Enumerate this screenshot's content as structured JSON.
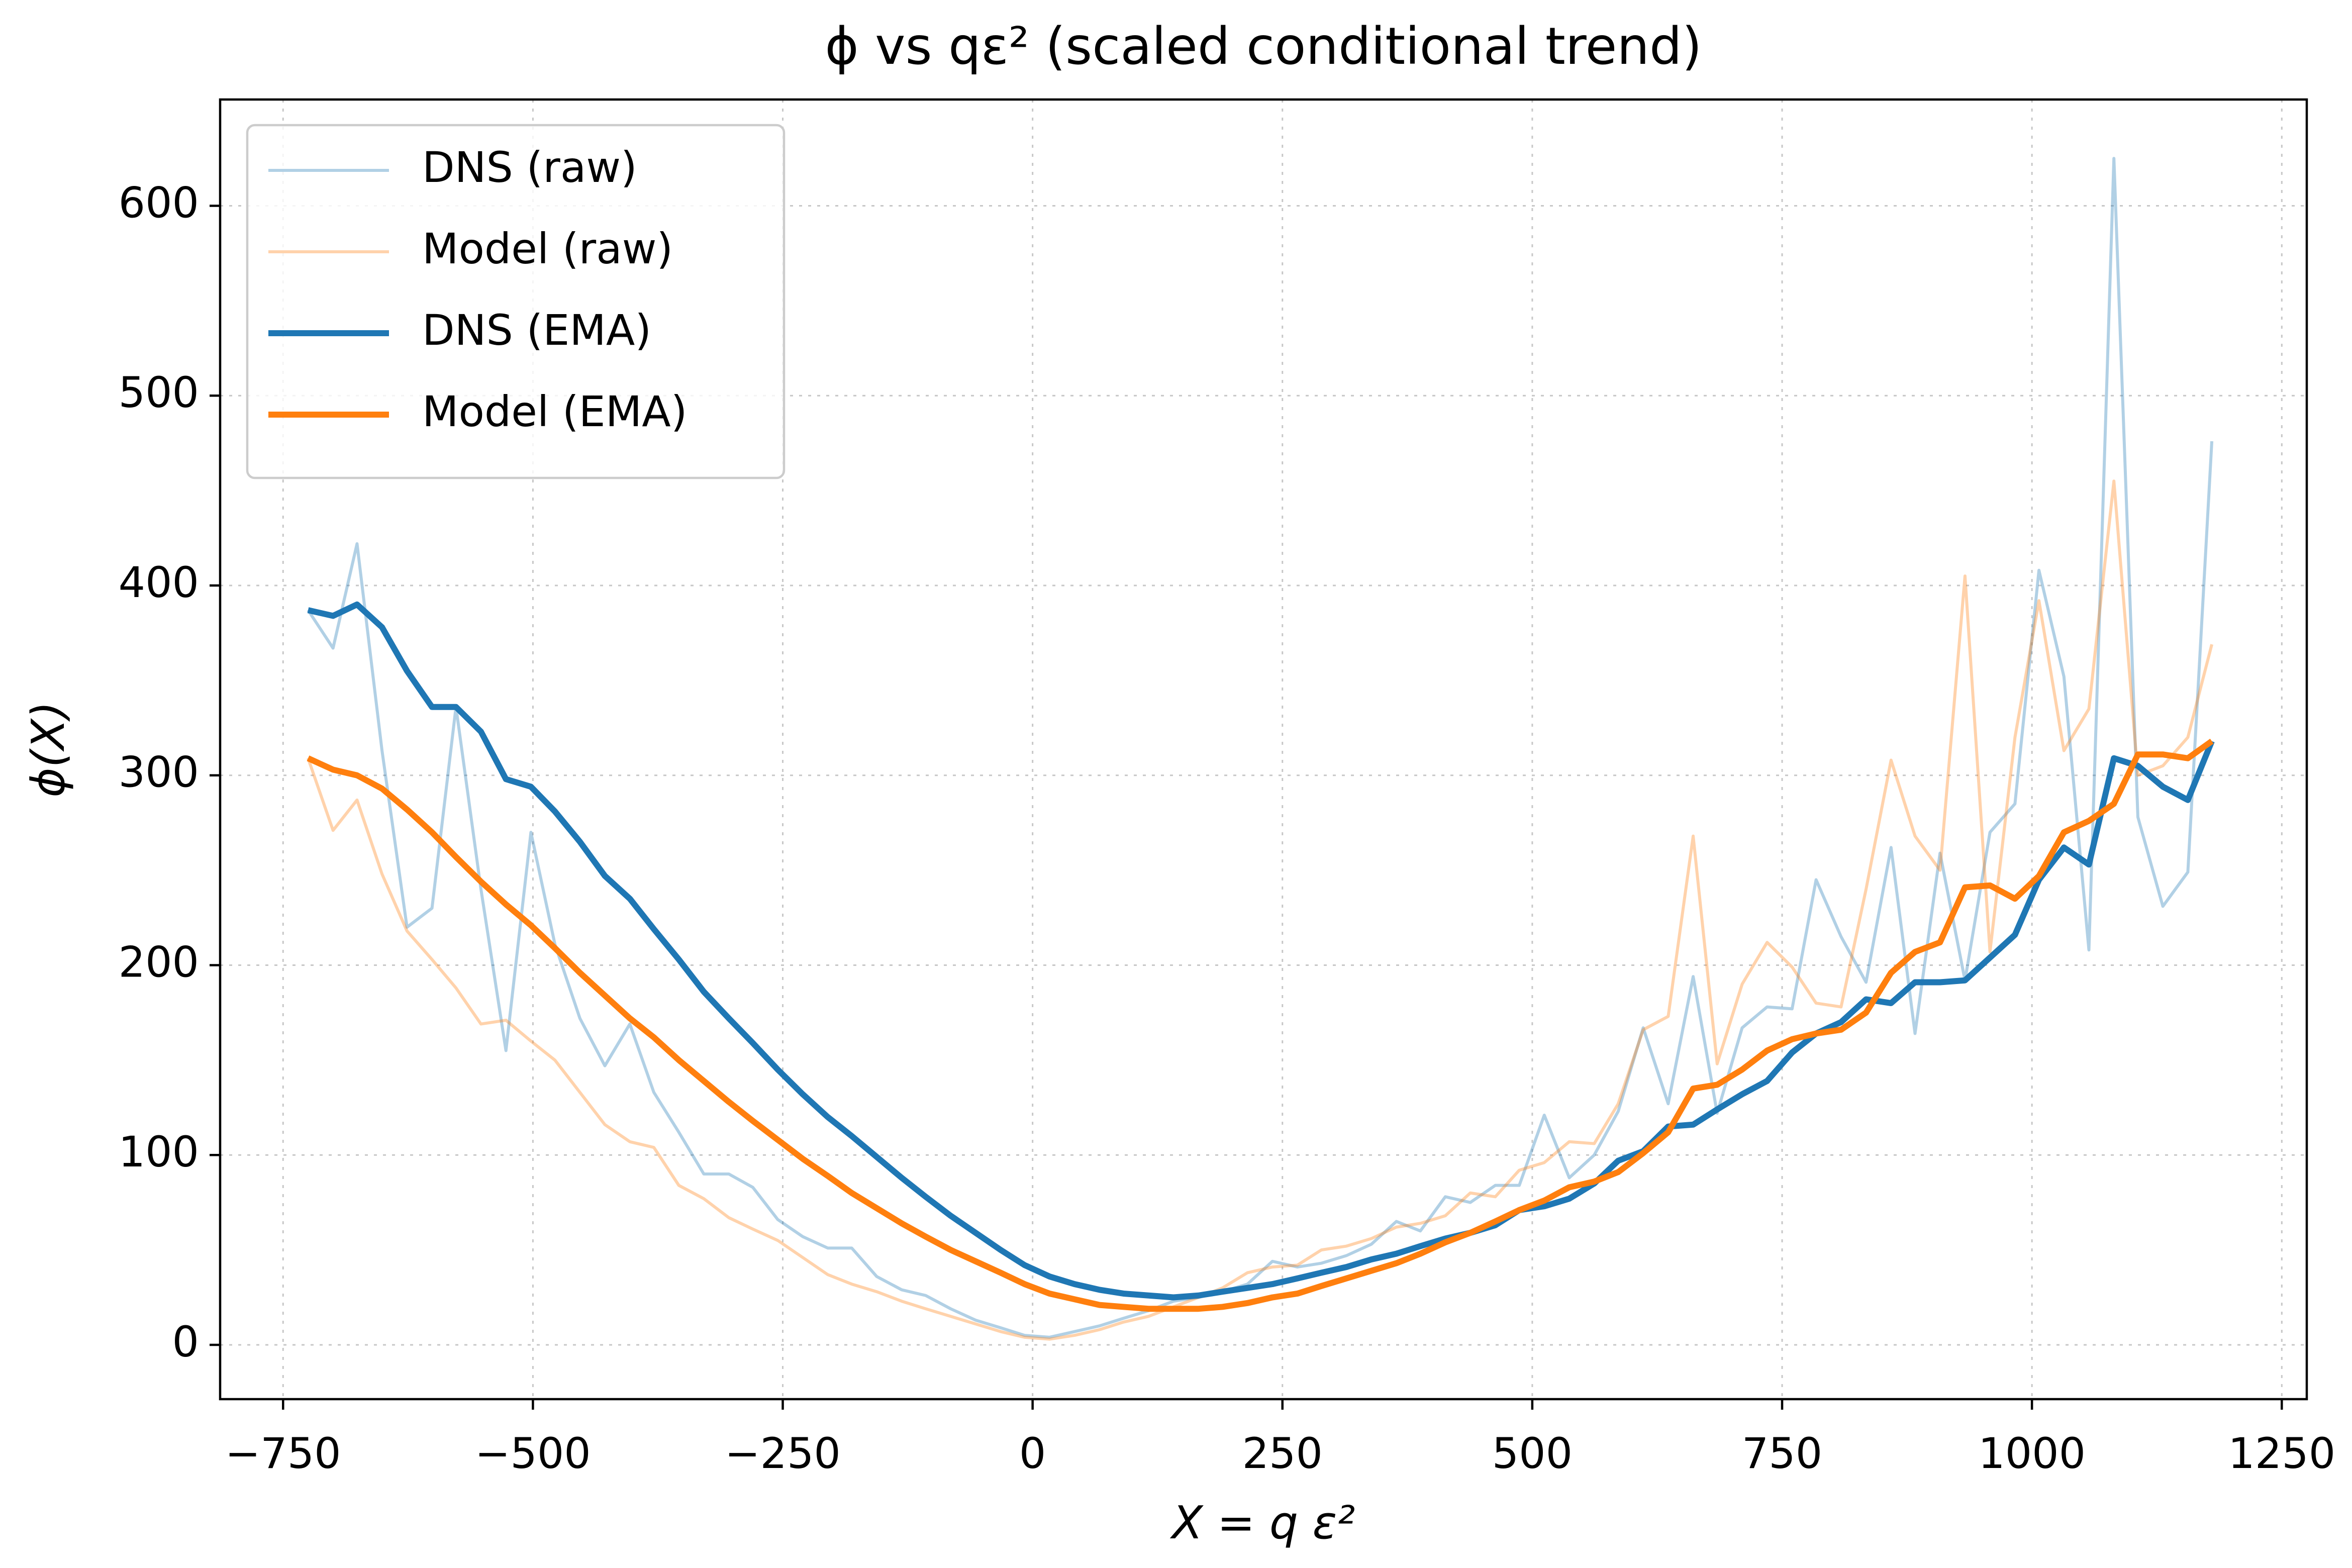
{
  "chart_data": {
    "type": "line",
    "title": "ϕ vs qε² (scaled conditional trend)",
    "xlabel": "X = q ε²",
    "ylabel": "ϕ(X)",
    "x": [
      -725,
      -700,
      -676,
      -651,
      -626,
      -601,
      -577,
      -552,
      -527,
      -502,
      -478,
      -453,
      -428,
      -403,
      -379,
      -354,
      -329,
      -304,
      -280,
      -255,
      -230,
      -205,
      -181,
      -156,
      -131,
      -107,
      -82,
      -57,
      -32,
      -8,
      17,
      42,
      67,
      91,
      116,
      141,
      166,
      190,
      215,
      240,
      265,
      289,
      314,
      339,
      364,
      388,
      413,
      438,
      463,
      487,
      512,
      537,
      562,
      586,
      611,
      636,
      661,
      685,
      710,
      735,
      760,
      784,
      809,
      834,
      859,
      883,
      908,
      933,
      958,
      983,
      1007,
      1032,
      1057,
      1082,
      1106,
      1131,
      1156,
      1180
    ],
    "series": [
      {
        "name": "DNS (raw)",
        "color": "#1f77b4",
        "opacity": 0.35,
        "values": [
          387,
          367,
          422,
          313,
          220,
          230,
          336,
          240,
          155,
          270,
          211,
          172,
          147,
          169,
          133,
          112,
          90,
          90,
          83,
          66,
          57,
          51,
          51,
          36,
          29,
          26,
          19,
          13,
          9,
          5,
          4,
          7,
          10,
          14,
          18,
          23,
          25,
          28,
          32,
          44,
          41,
          43,
          47,
          53,
          65,
          60,
          78,
          75,
          84,
          84,
          121,
          88,
          100,
          123,
          167,
          127,
          194,
          122,
          167,
          178,
          177,
          245,
          215,
          191,
          262,
          164,
          259,
          192,
          270,
          285,
          408,
          352,
          208,
          625,
          278,
          231,
          249,
          476
        ]
      },
      {
        "name": "Model (raw)",
        "color": "#ff7f0e",
        "opacity": 0.35,
        "values": [
          309,
          271,
          287,
          248,
          218,
          203,
          188,
          169,
          171,
          160,
          150,
          133,
          116,
          107,
          104,
          84,
          77,
          67,
          61,
          55,
          46,
          37,
          32,
          28,
          23,
          19,
          15,
          11,
          7,
          4,
          3,
          5,
          8,
          12,
          15,
          20,
          25,
          30,
          38,
          41,
          42,
          50,
          52,
          56,
          62,
          64,
          68,
          80,
          78,
          92,
          96,
          107,
          106,
          127,
          166,
          173,
          268,
          148,
          190,
          212,
          199,
          180,
          178,
          240,
          308,
          268,
          250,
          405,
          207,
          320,
          392,
          313,
          335,
          455,
          300,
          305,
          320,
          369
        ]
      },
      {
        "name": "DNS (EMA)",
        "color": "#1f77b4",
        "opacity": 1,
        "values": [
          387,
          384,
          390,
          378,
          355,
          336,
          336,
          323,
          298,
          294,
          281,
          265,
          247,
          235,
          219,
          203,
          186,
          172,
          159,
          145,
          132,
          120,
          110,
          99,
          88,
          78,
          68,
          59,
          50,
          42,
          36,
          32,
          29,
          27,
          26,
          25,
          26,
          28,
          30,
          32,
          35,
          38,
          41,
          45,
          48,
          52,
          56,
          59,
          63,
          71,
          73,
          77,
          85,
          97,
          102,
          115,
          116,
          124,
          132,
          139,
          154,
          164,
          170,
          182,
          180,
          191,
          191,
          192,
          204,
          216,
          245,
          262,
          253,
          309,
          305,
          294,
          287,
          318
        ]
      },
      {
        "name": "Model (EMA)",
        "color": "#ff7f0e",
        "opacity": 1,
        "values": [
          309,
          303,
          300,
          293,
          282,
          270,
          257,
          244,
          232,
          221,
          209,
          196,
          184,
          172,
          162,
          150,
          139,
          128,
          118,
          108,
          98,
          89,
          80,
          72,
          64,
          57,
          50,
          44,
          38,
          32,
          27,
          24,
          21,
          20,
          19,
          19,
          19,
          20,
          22,
          25,
          27,
          31,
          35,
          39,
          43,
          48,
          54,
          59,
          65,
          71,
          76,
          83,
          86,
          91,
          101,
          112,
          135,
          137,
          145,
          155,
          161,
          164,
          166,
          175,
          196,
          207,
          212,
          241,
          242,
          235,
          247,
          270,
          276,
          285,
          311,
          311,
          309,
          318
        ]
      }
    ],
    "xlim": [
      -813,
      1275
    ],
    "ylim": [
      -28.6,
      656
    ],
    "xticks": [
      {
        "value": -750,
        "label": "−750"
      },
      {
        "value": -500,
        "label": "−500"
      },
      {
        "value": -250,
        "label": "−250"
      },
      0,
      250,
      500,
      750,
      1000,
      1250
    ],
    "yticks": [
      0,
      100,
      200,
      300,
      400,
      500,
      600
    ],
    "grid": true,
    "legend": "upper left"
  }
}
